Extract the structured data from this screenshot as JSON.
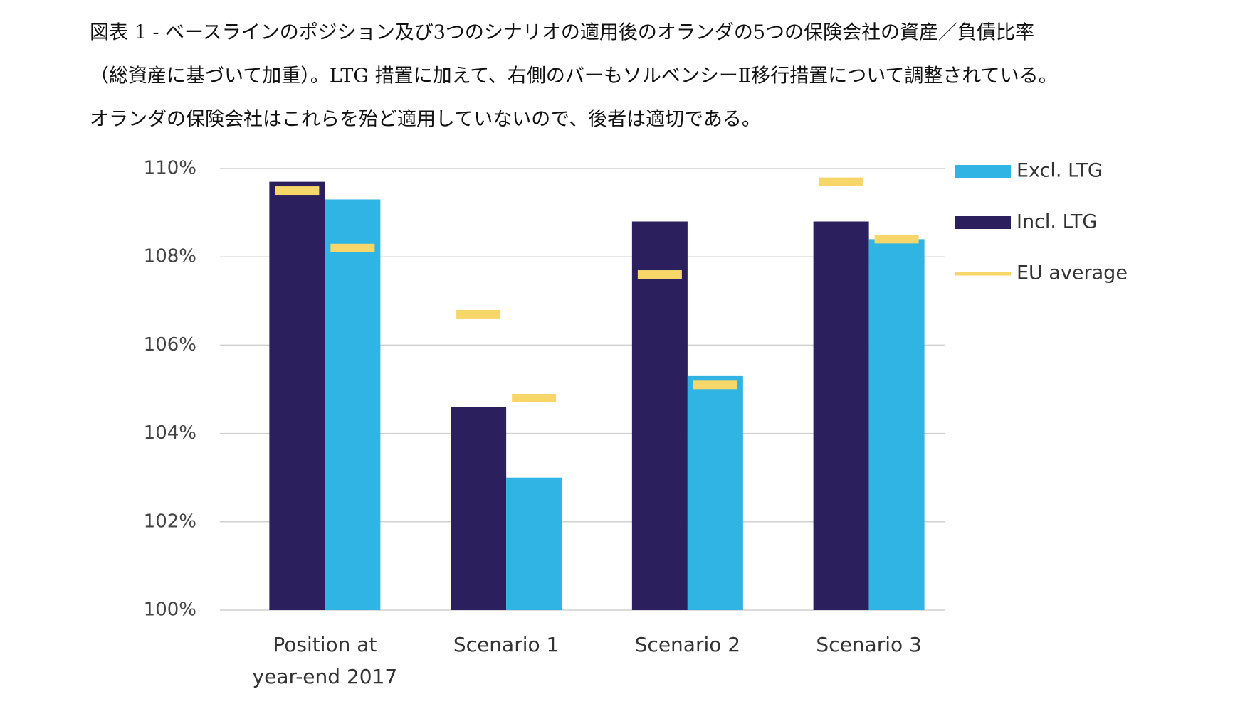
{
  "chart_data": {
    "type": "bar",
    "title_lines": [
      "図表 1 - ベースラインのポジション及び3つのシナリオの適用後のオランダの5つの保険会社の資産／負債比率",
      "（総資産に基づいて加重）。LTG 措置に加えて、右側のバーもソルベンシーⅡ移行措置について調整されている。",
      "オランダの保険会社はこれらを殆ど適用していないので、後者は適切である。"
    ],
    "categories": [
      [
        "Position at",
        "year-end 2017"
      ],
      [
        "Scenario 1"
      ],
      [
        "Scenario 2"
      ],
      [
        "Scenario 3"
      ]
    ],
    "series": [
      {
        "name": "Incl. LTG",
        "color": "#2b1f5e",
        "values": [
          109.7,
          104.6,
          108.8,
          108.8
        ],
        "eu_average": [
          109.5,
          106.7,
          107.6,
          109.7
        ]
      },
      {
        "name": "Excl. LTG",
        "color": "#2fb4e4",
        "values": [
          109.3,
          103.0,
          105.3,
          108.4
        ],
        "eu_average": [
          108.2,
          104.8,
          105.1,
          108.4
        ]
      }
    ],
    "eu_average_name": "EU average",
    "eu_average_color": "#f7d66a",
    "ylim": [
      100,
      110
    ],
    "yticks": [
      {
        "value": 100,
        "label": "100%"
      },
      {
        "value": 102,
        "label": "102%"
      },
      {
        "value": 104,
        "label": "104%"
      },
      {
        "value": 106,
        "label": "106%"
      },
      {
        "value": 108,
        "label": "108%"
      },
      {
        "value": 110,
        "label": "110%"
      }
    ],
    "grid": true,
    "legend": "right"
  }
}
